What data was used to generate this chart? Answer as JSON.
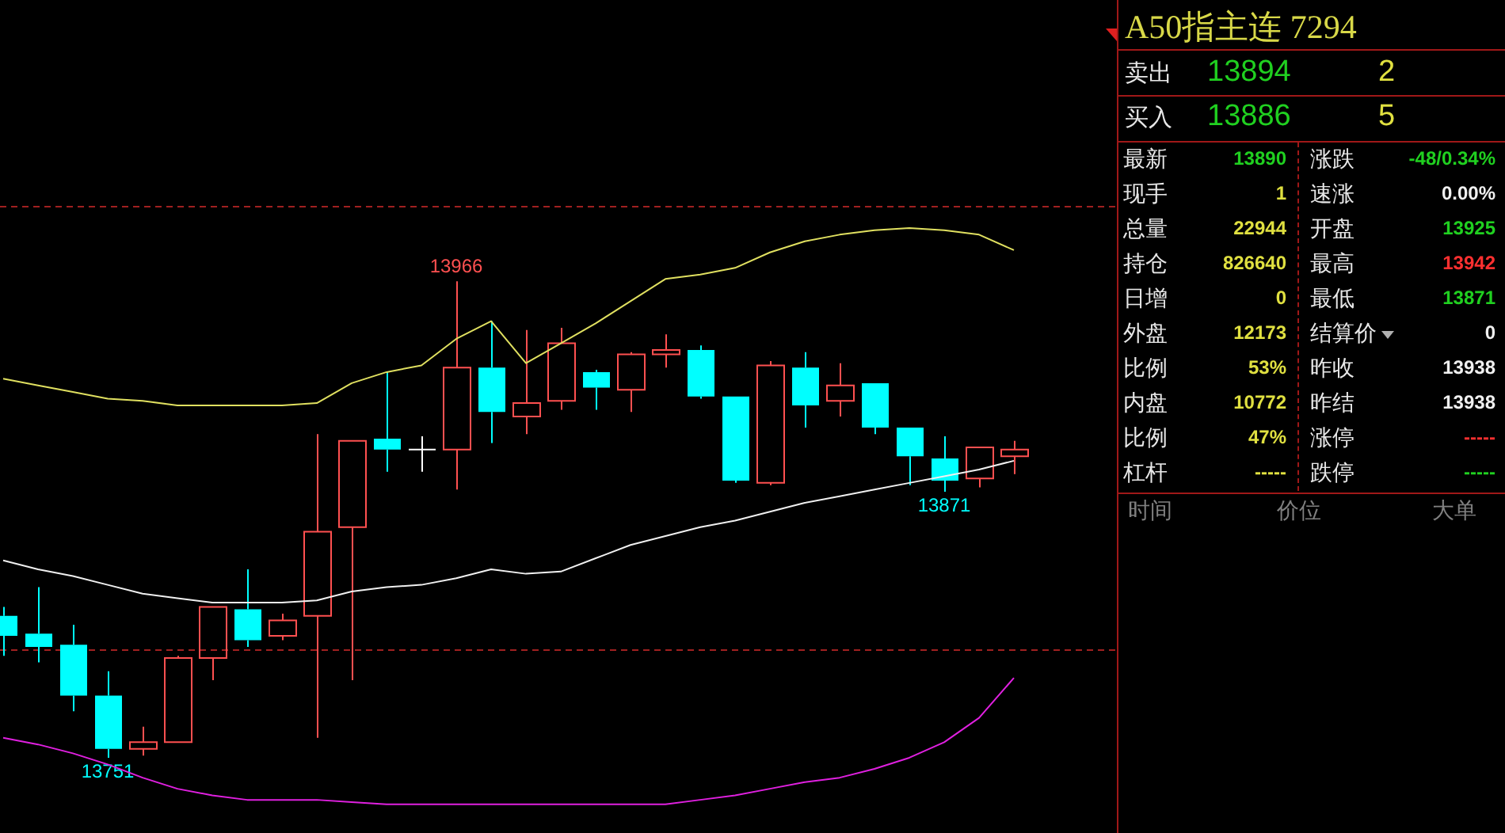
{
  "chart_data": [
    {
      "type": "candlestick",
      "categories": [
        null,
        null,
        null,
        null,
        null,
        null,
        null,
        null,
        null,
        null,
        null,
        null,
        null,
        null,
        null,
        null,
        null,
        null,
        null,
        null,
        null,
        null,
        null,
        null,
        null,
        null,
        null,
        null,
        null,
        null
      ],
      "ohlc": [
        [
          13815,
          13819,
          13797,
          13806
        ],
        [
          13807,
          13828,
          13794,
          13801
        ],
        [
          13802,
          13811,
          13772,
          13779
        ],
        [
          13779,
          13790,
          13751,
          13755
        ],
        [
          13755,
          13765,
          13752,
          13758
        ],
        [
          13758,
          13797,
          13758,
          13796
        ],
        [
          13796,
          13819,
          13786,
          13819
        ],
        [
          13818,
          13836,
          13801,
          13804
        ],
        [
          13806,
          13816,
          13804,
          13813
        ],
        [
          13815,
          13897,
          13760,
          13853
        ],
        [
          13855,
          13894,
          13786,
          13894
        ],
        [
          13895,
          13925,
          13880,
          13890
        ],
        [
          13890,
          13896,
          13880,
          13890
        ],
        [
          13890,
          13966,
          13872,
          13927
        ],
        [
          13927,
          13948,
          13893,
          13907
        ],
        [
          13905,
          13944,
          13897,
          13911
        ],
        [
          13912,
          13945,
          13908,
          13938
        ],
        [
          13925,
          13926,
          13908,
          13918
        ],
        [
          13917,
          13934,
          13907,
          13933
        ],
        [
          13933,
          13942,
          13927,
          13935
        ],
        [
          13935,
          13937,
          13913,
          13914
        ],
        [
          13914,
          13914,
          13875,
          13876
        ],
        [
          13875,
          13930,
          13874,
          13928
        ],
        [
          13927,
          13934,
          13900,
          13910
        ],
        [
          13912,
          13929,
          13905,
          13919
        ],
        [
          13920,
          13920,
          13897,
          13900
        ],
        [
          13900,
          13900,
          13874,
          13887
        ],
        [
          13886,
          13896,
          13871,
          13876
        ],
        [
          13877,
          13891,
          13873,
          13891
        ],
        [
          13887,
          13894,
          13879,
          13890
        ]
      ],
      "colors": [
        "#00ffff",
        "#00ffff",
        "#00ffff",
        "#00ffff",
        "#ff5050",
        "#ff5050",
        "#ff5050",
        "#00ffff",
        "#ff5050",
        "#ff5050",
        "#ff5050",
        "#00ffff",
        "#ffffff",
        "#ff5050",
        "#00ffff",
        "#ff5050",
        "#ff5050",
        "#00ffff",
        "#ff5050",
        "#ff5050",
        "#00ffff",
        "#00ffff",
        "#ff5050",
        "#00ffff",
        "#ff5050",
        "#00ffff",
        "#00ffff",
        "#00ffff",
        "#ff5050",
        "#ff5050"
      ],
      "series": [
        {
          "type": "line",
          "color": "#e0e060",
          "values": [
            13922,
            13919,
            13916,
            13913,
            13912,
            13910,
            13910,
            13910,
            13910,
            13911,
            13920,
            13925,
            13928,
            13940,
            13948,
            13929,
            13938,
            13947,
            13957,
            13967,
            13969,
            13972,
            13979,
            13984,
            13987,
            13989,
            13990,
            13989,
            13987,
            13980
          ]
        },
        {
          "type": "line",
          "color": "#f0f0f0",
          "values": [
            13840,
            13836,
            13833,
            13829,
            13825,
            13823,
            13821,
            13821,
            13821,
            13822,
            13826,
            13828,
            13829,
            13832,
            13836,
            13834,
            13835,
            13841,
            13847,
            13851,
            13855,
            13858,
            13862,
            13866,
            13869,
            13872,
            13875,
            13878,
            13881,
            13885
          ]
        },
        {
          "type": "line",
          "color": "#e020e0",
          "values": [
            13760,
            13757,
            13753,
            13748,
            13742,
            13737,
            13734,
            13732,
            13732,
            13732,
            13731,
            13730,
            13730,
            13730,
            13730,
            13730,
            13730,
            13730,
            13730,
            13730,
            13732,
            13734,
            13737,
            13740,
            13742,
            13746,
            13751,
            13758,
            13769,
            13787
          ]
        }
      ],
      "ref_lines": [
        {
          "axis": "y",
          "value": 14000,
          "color": "#a02020",
          "line_style": "dashed"
        },
        {
          "axis": "y",
          "value": 13800,
          "color": "#a02020",
          "line_style": "dashed"
        }
      ],
      "annotations": [
        {
          "text": "13966",
          "y": 13966
        },
        {
          "text": "13751",
          "y": 13751
        },
        {
          "text": "13871",
          "y": 13871
        }
      ],
      "tick_labels": false,
      "legend": false
    },
    {
      "type": "other",
      "title": "A50指主连 7294",
      "annotations": [
        "卖出",
        "13894",
        "2",
        "买入",
        "13886",
        "5",
        "最新",
        "13890",
        "涨跌",
        "-48/0.34%",
        "现手",
        "1",
        "速涨",
        "0.00%",
        "总量",
        "22944",
        "开盘",
        "13925",
        "持仓",
        "826640",
        "最高",
        "13942",
        "日增",
        "0",
        "最低",
        "13871",
        "外盘",
        "12173",
        "结算价",
        "0",
        "比例",
        "53%",
        "昨收",
        "13938",
        "内盘",
        "10772",
        "昨结",
        "13938",
        "比例",
        "47%",
        "涨停",
        "-----",
        "杠杆",
        "-----",
        "跌停",
        "-----",
        "时间",
        "价位",
        "大单"
      ]
    }
  ]
}
